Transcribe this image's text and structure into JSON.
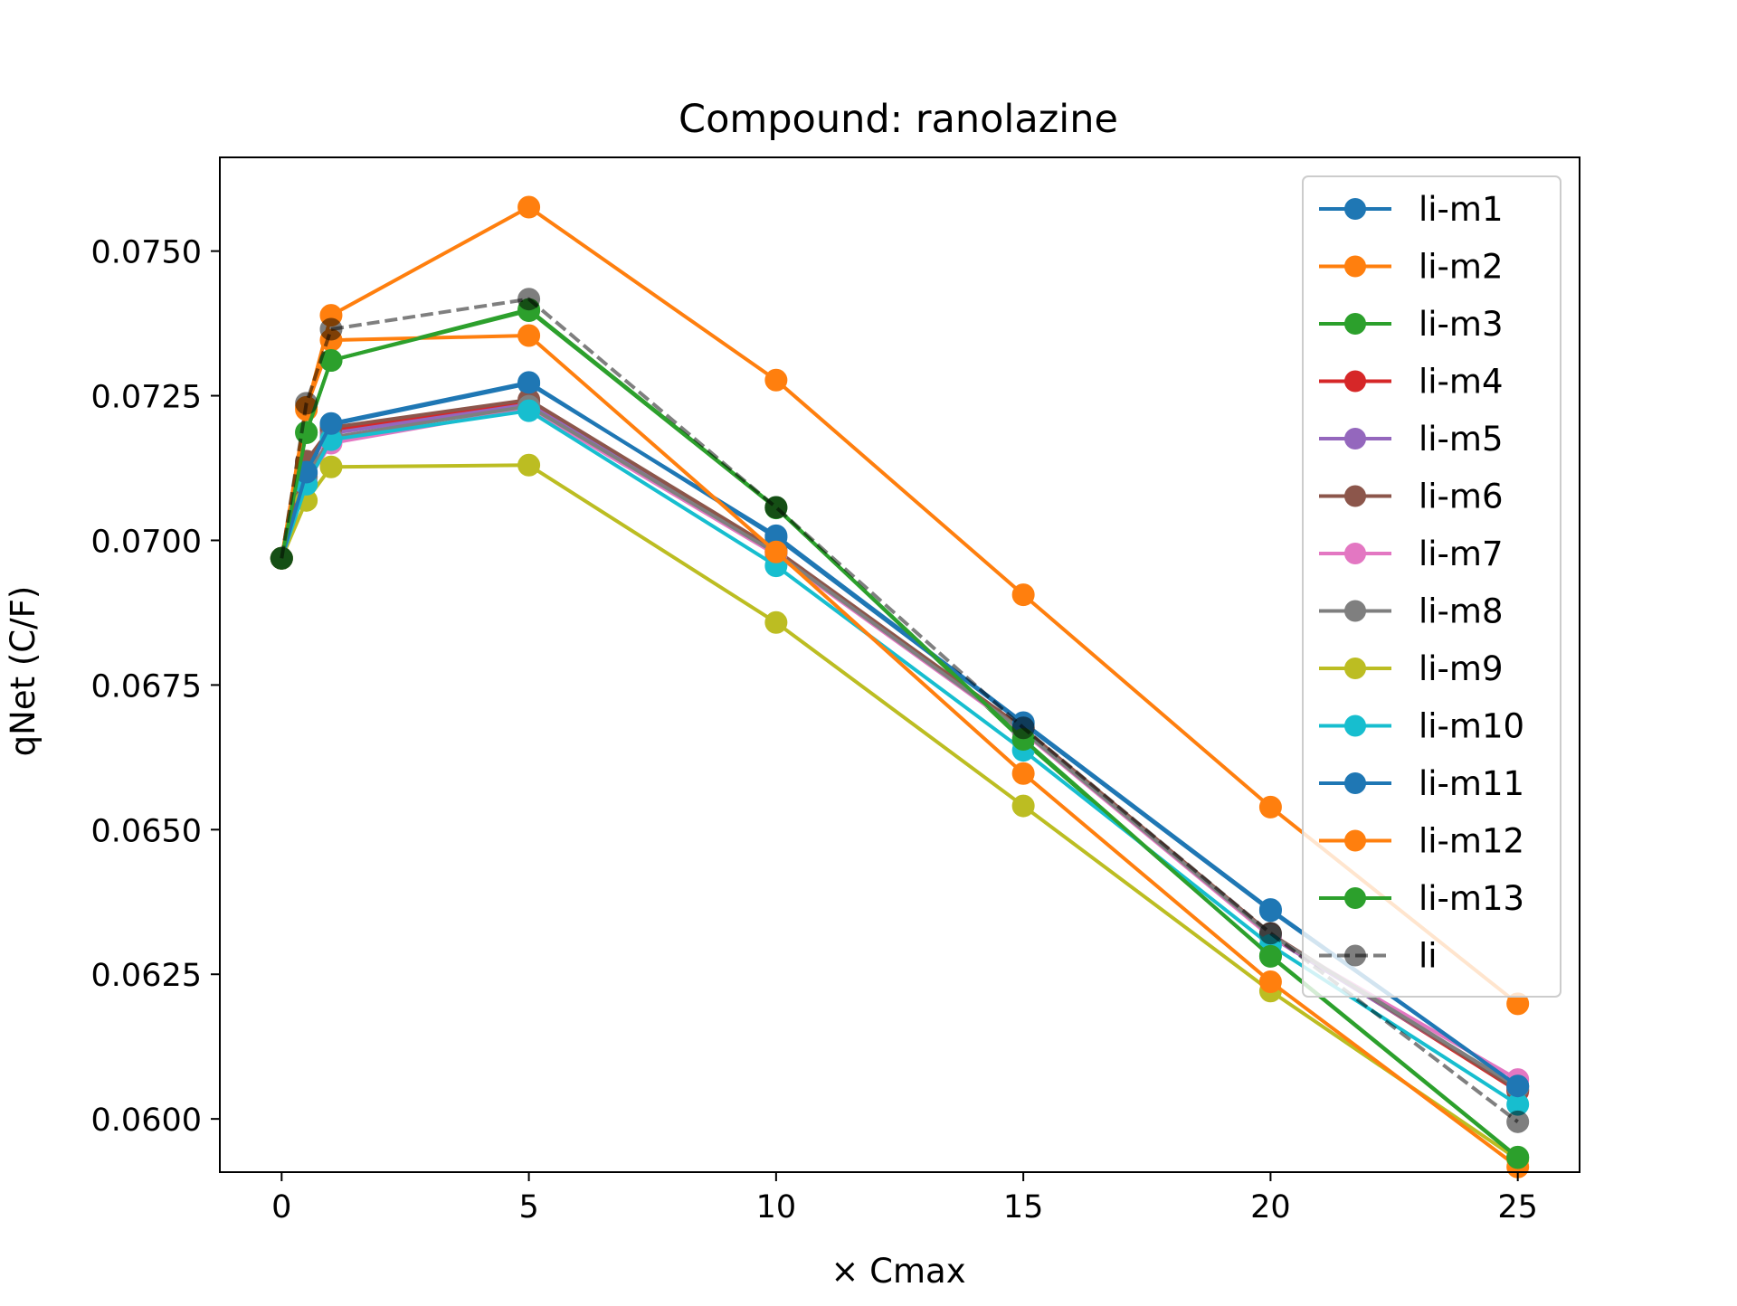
{
  "chart_data": {
    "type": "line",
    "title": "Compound: ranolazine",
    "xlabel": "× Cmax",
    "ylabel": "qNet (C/F)",
    "xlim": [
      -1.25,
      26.25
    ],
    "ylim": [
      0.05908,
      0.07662
    ],
    "xticks": [
      0,
      5,
      10,
      15,
      20,
      25
    ],
    "xtick_labels": [
      "0",
      "5",
      "10",
      "15",
      "20",
      "25"
    ],
    "yticks": [
      0.06,
      0.0625,
      0.065,
      0.0675,
      0.07,
      0.0725,
      0.075
    ],
    "ytick_labels": [
      "0.0600",
      "0.0625",
      "0.0650",
      "0.0675",
      "0.0700",
      "0.0725",
      "0.0750"
    ],
    "grid": false,
    "legend_position": "top-right",
    "x": [
      0,
      0.5,
      1,
      5,
      10,
      15,
      20,
      25
    ],
    "series": [
      {
        "name": "li-m1",
        "color": "#1f77b4",
        "style": "solid",
        "values": [
          0.06969,
          0.07115,
          0.072,
          0.07271,
          0.07008,
          0.06685,
          0.06362,
          0.06057
        ]
      },
      {
        "name": "li-m2",
        "color": "#ff7f0e",
        "style": "solid",
        "values": [
          0.06969,
          0.07226,
          0.07389,
          0.07576,
          0.07277,
          0.06906,
          0.06539,
          0.06199
        ]
      },
      {
        "name": "li-m3",
        "color": "#2ca02c",
        "style": "solid",
        "values": [
          0.06969,
          0.07187,
          0.07311,
          0.07399,
          0.07057,
          0.06653,
          0.06282,
          0.05934
        ]
      },
      {
        "name": "li-m4",
        "color": "#d62728",
        "style": "solid",
        "values": [
          0.06969,
          0.07135,
          0.0719,
          0.07239,
          0.06981,
          0.06672,
          0.06318,
          0.06048
        ]
      },
      {
        "name": "li-m5",
        "color": "#9467bd",
        "style": "solid",
        "values": [
          0.06969,
          0.0713,
          0.07185,
          0.07235,
          0.0698,
          0.0667,
          0.06315,
          0.06052
        ]
      },
      {
        "name": "li-m6",
        "color": "#8c564b",
        "style": "solid",
        "values": [
          0.06969,
          0.07137,
          0.07195,
          0.07243,
          0.06983,
          0.06675,
          0.0632,
          0.0605
        ]
      },
      {
        "name": "li-m7",
        "color": "#e377c2",
        "style": "solid",
        "values": [
          0.06969,
          0.071,
          0.07168,
          0.07228,
          0.06975,
          0.06668,
          0.06315,
          0.06068
        ]
      },
      {
        "name": "li-m8",
        "color": "#7f7f7f",
        "style": "solid",
        "values": [
          0.06969,
          0.0711,
          0.07178,
          0.07232,
          0.06978,
          0.0667,
          0.06318,
          0.06055
        ]
      },
      {
        "name": "li-m9",
        "color": "#bcbd22",
        "style": "solid",
        "values": [
          0.06969,
          0.07069,
          0.07127,
          0.0713,
          0.06858,
          0.06541,
          0.06221,
          0.0593
        ]
      },
      {
        "name": "li-m10",
        "color": "#17becf",
        "style": "solid",
        "values": [
          0.06969,
          0.07097,
          0.07174,
          0.07224,
          0.06956,
          0.06637,
          0.063,
          0.06025
        ]
      },
      {
        "name": "li-m11",
        "color": "#1f77b4",
        "style": "solid",
        "values": [
          0.06969,
          0.07118,
          0.07202,
          0.07273,
          0.07005,
          0.06683,
          0.0636,
          0.06057
        ]
      },
      {
        "name": "li-m12",
        "color": "#ff7f0e",
        "style": "solid",
        "values": [
          0.06969,
          0.0723,
          0.07346,
          0.07354,
          0.0698,
          0.06597,
          0.06237,
          0.05917
        ]
      },
      {
        "name": "li-m13",
        "color": "#2ca02c",
        "style": "solid",
        "values": [
          0.06969,
          0.07186,
          0.07311,
          0.07397,
          0.07056,
          0.06656,
          0.06281,
          0.05933
        ]
      },
      {
        "name": "li",
        "color": "#000000",
        "style": "dashed",
        "values": [
          0.06969,
          0.07237,
          0.07365,
          0.07417,
          0.07057,
          0.06676,
          0.06321,
          0.05995
        ]
      }
    ]
  }
}
